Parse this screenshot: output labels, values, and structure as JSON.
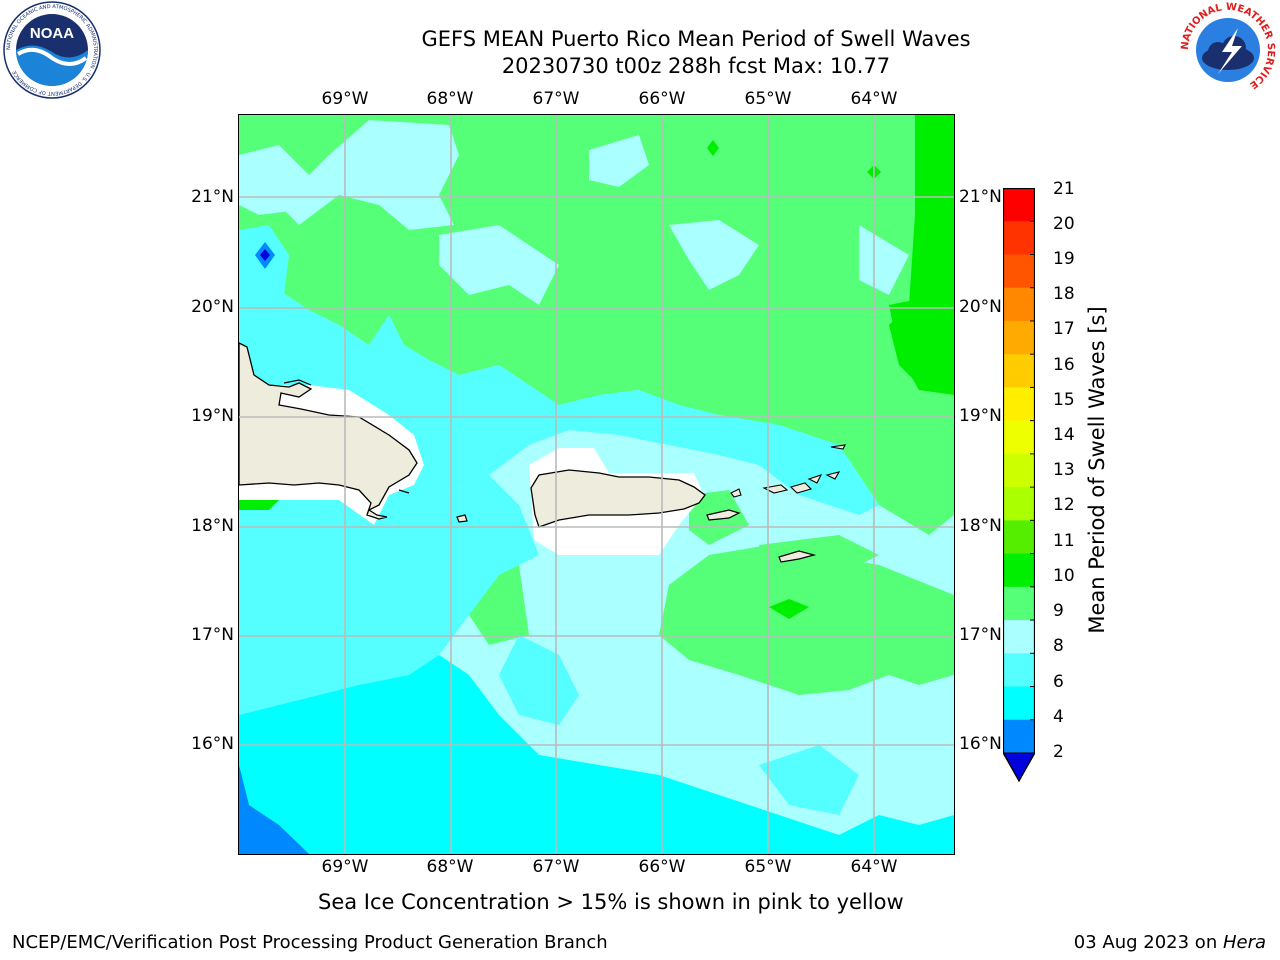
{
  "title_line1": "GEFS MEAN Puerto Rico Mean Period of Swell Waves",
  "title_line2": "20230730 t00z 288h fcst   Max: 10.77",
  "lon_labels": [
    "69°W",
    "68°W",
    "67°W",
    "66°W",
    "65°W",
    "64°W"
  ],
  "lat_labels": [
    "21°N",
    "20°N",
    "19°N",
    "18°N",
    "17°N",
    "16°N"
  ],
  "colorbar": {
    "label": "Mean Period of Swell Waves [s]",
    "ticks": [
      "21",
      "20",
      "19",
      "18",
      "17",
      "16",
      "15",
      "14",
      "13",
      "12",
      "11",
      "10",
      "9",
      "8",
      "6",
      "4",
      "2"
    ],
    "colors": [
      "#ff0000",
      "#ff3300",
      "#ff5500",
      "#ff8800",
      "#ffaa00",
      "#ffcc00",
      "#ffee00",
      "#eeff00",
      "#ccff00",
      "#aaff00",
      "#55ee00",
      "#00ee00",
      "#55ff77",
      "#aaffff",
      "#55ffff",
      "#00ffff",
      "#0088ff"
    ],
    "underflow_color": "#0000dd"
  },
  "map_colors": {
    "green": "#55ff77",
    "pale_cyan": "#aaffff",
    "light_cyan": "#55ffff",
    "cyan": "#00ffff",
    "blue": "#0088ff",
    "bright_green": "#00ee00",
    "land": "#eeecdc",
    "grid": "#bbbbbb"
  },
  "note": "Sea Ice Concentration > 15% is shown in pink to yellow",
  "footer_left": "NCEP/EMC/Verification Post Processing Product Generation Branch",
  "footer_right_date": "03 Aug 2023 on ",
  "footer_right_host": "Hera",
  "logo_left_text": "NOAA",
  "logo_left_ring": "NATIONAL OCEANIC AND ATMOSPHERIC ADMINISTRATION · U.S. DEPARTMENT OF COMMERCE",
  "logo_right_ring": "NATIONAL WEATHER SERVICE"
}
